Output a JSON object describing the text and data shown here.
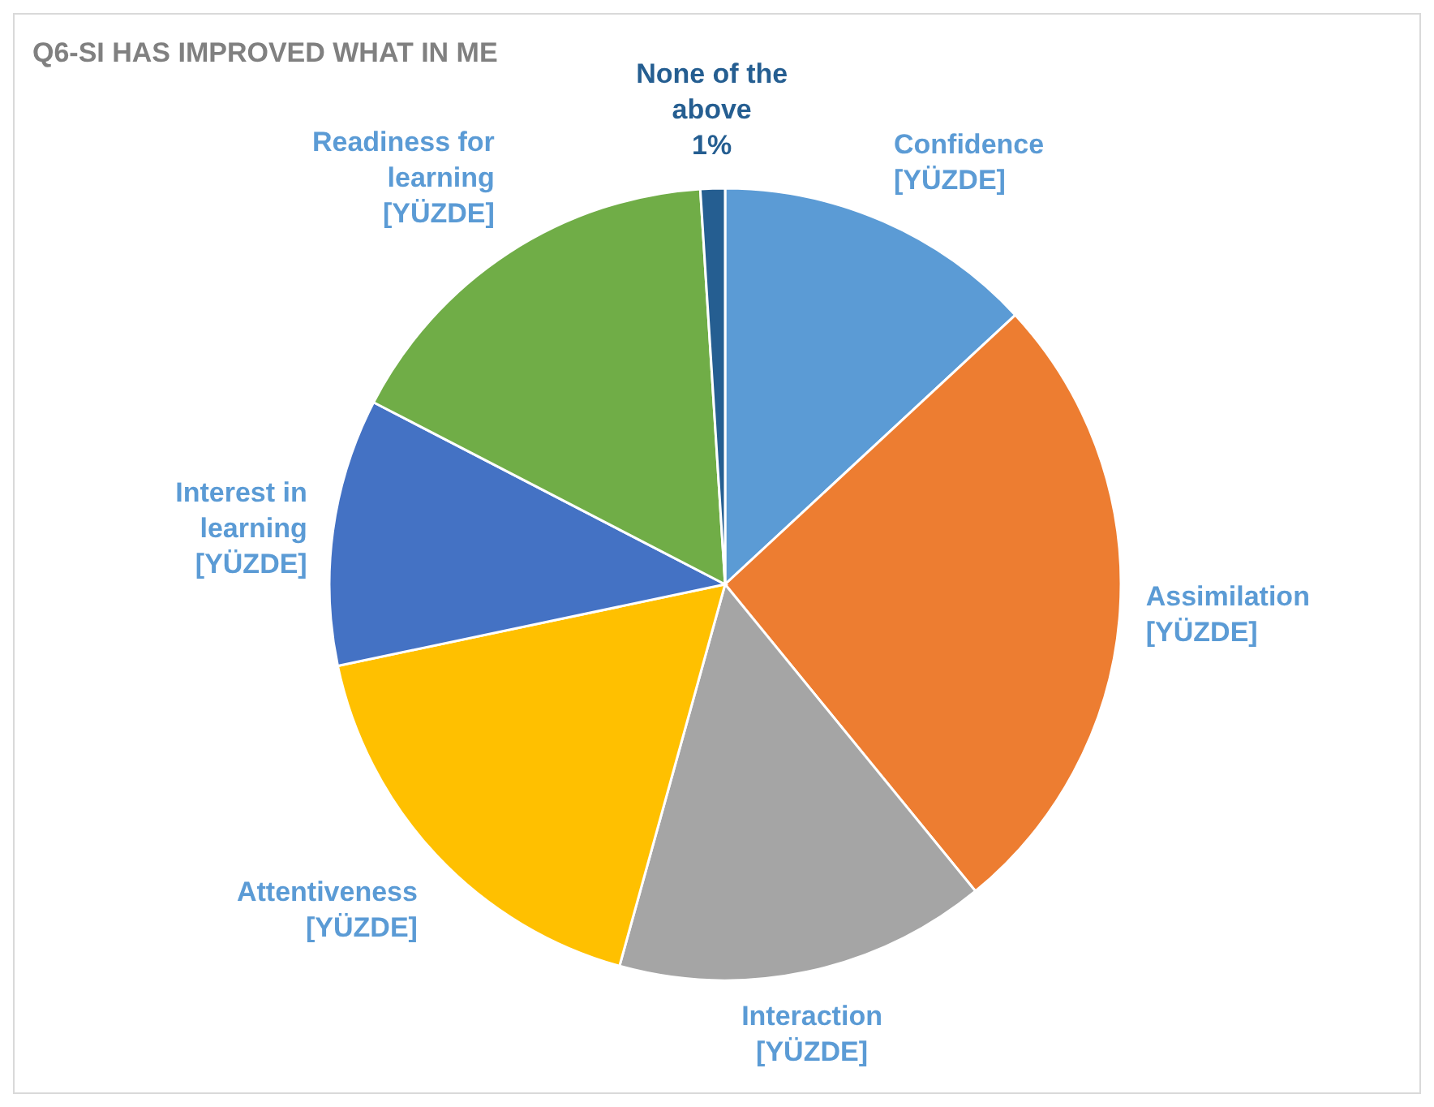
{
  "chart_data": {
    "type": "pie",
    "title": "Q6-SI HAS IMPROVED WHAT IN ME",
    "categories": [
      "Confidence",
      "Assimilation",
      "Interaction",
      "Attentiveness",
      "Interest in learning",
      "Readiness for learning",
      "None of the above"
    ],
    "values": [
      13.1,
      26,
      15.2,
      17.4,
      10.9,
      16.4,
      1
    ],
    "colors": [
      "#5b9bd5",
      "#ed7d31",
      "#a5a5a5",
      "#ffc000",
      "#4472c4",
      "#70ad47",
      "#255e91"
    ],
    "value_labels": [
      "[YÜZDE]",
      "[YÜZDE]",
      "[YÜZDE]",
      "[YÜZDE]",
      "[YÜZDE]",
      "[YÜZDE]",
      "1%"
    ]
  }
}
